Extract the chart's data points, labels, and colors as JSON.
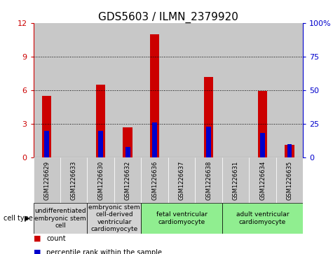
{
  "title": "GDS5603 / ILMN_2379920",
  "samples": [
    "GSM1226629",
    "GSM1226633",
    "GSM1226630",
    "GSM1226632",
    "GSM1226636",
    "GSM1226637",
    "GSM1226638",
    "GSM1226631",
    "GSM1226634",
    "GSM1226635"
  ],
  "counts": [
    5.5,
    0.0,
    6.5,
    2.7,
    11.0,
    0.0,
    7.2,
    0.0,
    5.9,
    1.1
  ],
  "percentiles": [
    20,
    0,
    20,
    8,
    26,
    0,
    23,
    0,
    18,
    10
  ],
  "ylim_left": [
    0,
    12
  ],
  "ylim_right": [
    0,
    100
  ],
  "yticks_left": [
    0,
    3,
    6,
    9,
    12
  ],
  "yticks_right": [
    0,
    25,
    50,
    75,
    100
  ],
  "cell_types": [
    {
      "label": "undifferentiated\nembryonic stem\ncell",
      "span": [
        0,
        2
      ],
      "color": "#d3d3d3"
    },
    {
      "label": "embryonic stem\ncell-derived\nventricular\ncardiomyocyte",
      "span": [
        2,
        4
      ],
      "color": "#d3d3d3"
    },
    {
      "label": "fetal ventricular\ncardiomyocyte",
      "span": [
        4,
        7
      ],
      "color": "#90ee90"
    },
    {
      "label": "adult ventricular\ncardiomyocyte",
      "span": [
        7,
        10
      ],
      "color": "#90ee90"
    }
  ],
  "bar_color": "#cc0000",
  "percentile_color": "#0000cc",
  "background_sample": "#c8c8c8",
  "title_fontsize": 11,
  "tick_fontsize": 8,
  "sample_fontsize": 6,
  "celltype_fontsize": 6.5
}
